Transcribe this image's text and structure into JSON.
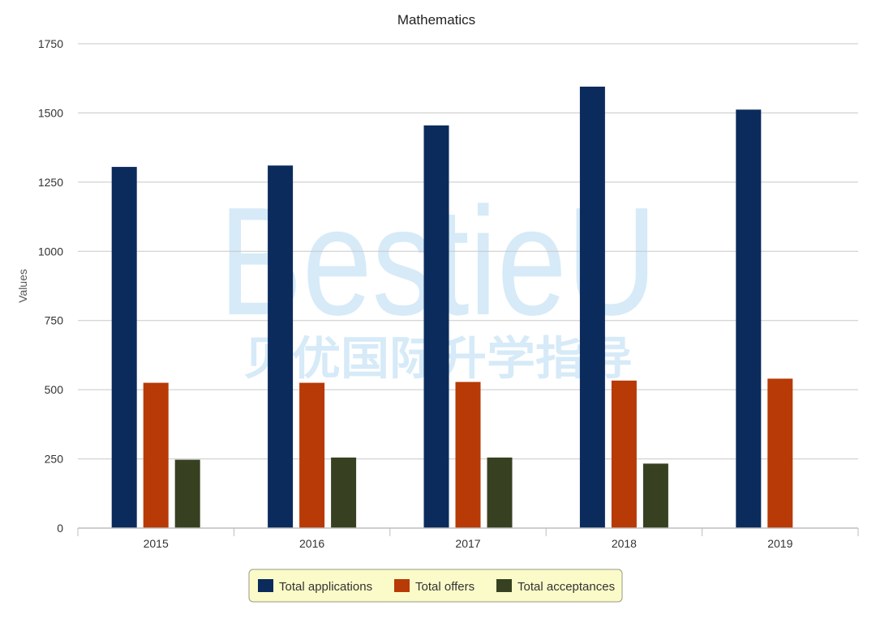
{
  "watermark": {
    "latin": "BestieU",
    "chinese": "贝优国际升学指导"
  },
  "chart_data": {
    "type": "bar",
    "title": "Mathematics",
    "xlabel": "",
    "ylabel": "Values",
    "ylim": [
      0,
      1750
    ],
    "yticks": [
      0,
      250,
      500,
      750,
      1000,
      1250,
      1500,
      1750
    ],
    "grid": true,
    "legend_position": "bottom",
    "categories": [
      "2015",
      "2016",
      "2017",
      "2018",
      "2019"
    ],
    "series": [
      {
        "name": "Total applications",
        "color": "#0b2b5c",
        "values": [
          1305,
          1310,
          1455,
          1595,
          1512
        ]
      },
      {
        "name": "Total offers",
        "color": "#b83a06",
        "values": [
          525,
          525,
          528,
          533,
          540
        ]
      },
      {
        "name": "Total acceptances",
        "color": "#374121",
        "values": [
          247,
          255,
          255,
          233,
          null
        ]
      }
    ]
  }
}
